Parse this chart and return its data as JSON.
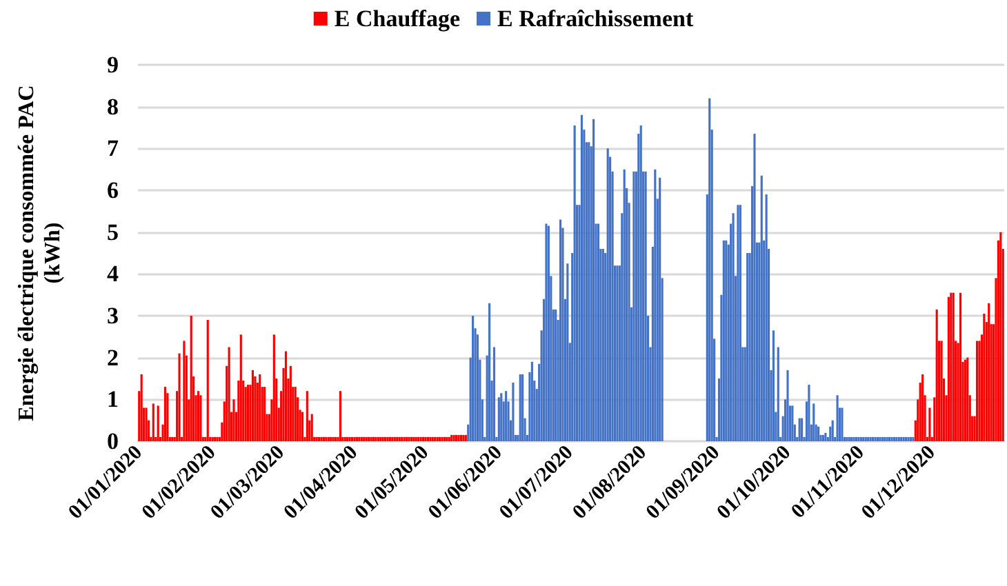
{
  "chart_data": {
    "type": "bar",
    "ylabel": "Energie électrique consommée PAC (kWh)",
    "categories": [
      "01/01/2020",
      null,
      null,
      null,
      null,
      null,
      null,
      null,
      null,
      null,
      null,
      null,
      null,
      null,
      null,
      null,
      null,
      null,
      null,
      null,
      null,
      null,
      null,
      null,
      null,
      null,
      null,
      null,
      null,
      null,
      null,
      "01/02/2020",
      null,
      null,
      null,
      null,
      null,
      null,
      null,
      null,
      null,
      null,
      null,
      null,
      null,
      null,
      null,
      null,
      null,
      null,
      null,
      null,
      null,
      null,
      null,
      null,
      null,
      null,
      null,
      null,
      "01/03/2020",
      null,
      null,
      null,
      null,
      null,
      null,
      null,
      null,
      null,
      null,
      null,
      null,
      null,
      null,
      null,
      null,
      null,
      null,
      null,
      null,
      null,
      null,
      null,
      null,
      null,
      null,
      null,
      null,
      null,
      null,
      "01/04/2020",
      null,
      null,
      null,
      null,
      null,
      null,
      null,
      null,
      null,
      null,
      null,
      null,
      null,
      null,
      null,
      null,
      null,
      null,
      null,
      null,
      null,
      null,
      null,
      null,
      null,
      null,
      null,
      null,
      null,
      "01/05/2020",
      null,
      null,
      null,
      null,
      null,
      null,
      null,
      null,
      null,
      null,
      null,
      null,
      null,
      null,
      null,
      null,
      null,
      null,
      null,
      null,
      null,
      null,
      null,
      null,
      null,
      null,
      null,
      null,
      null,
      null,
      "01/06/2020",
      null,
      null,
      null,
      null,
      null,
      null,
      null,
      null,
      null,
      null,
      null,
      null,
      null,
      null,
      null,
      null,
      null,
      null,
      null,
      null,
      null,
      null,
      null,
      null,
      null,
      null,
      null,
      null,
      null,
      "01/07/2020",
      null,
      null,
      null,
      null,
      null,
      null,
      null,
      null,
      null,
      null,
      null,
      null,
      null,
      null,
      null,
      null,
      null,
      null,
      null,
      null,
      null,
      null,
      null,
      null,
      null,
      null,
      null,
      null,
      null,
      null,
      "01/08/2020",
      null,
      null,
      null,
      null,
      null,
      null,
      null,
      null,
      null,
      null,
      null,
      null,
      null,
      null,
      null,
      null,
      null,
      null,
      null,
      null,
      null,
      null,
      null,
      null,
      null,
      null,
      null,
      null,
      null,
      null,
      "01/09/2020",
      null,
      null,
      null,
      null,
      null,
      null,
      null,
      null,
      null,
      null,
      null,
      null,
      null,
      null,
      null,
      null,
      null,
      null,
      null,
      null,
      null,
      null,
      null,
      null,
      null,
      null,
      null,
      null,
      null,
      "01/10/2020",
      null,
      null,
      null,
      null,
      null,
      null,
      null,
      null,
      null,
      null,
      null,
      null,
      null,
      null,
      null,
      null,
      null,
      null,
      null,
      null,
      null,
      null,
      null,
      null,
      null,
      null,
      null,
      null,
      null,
      null,
      "01/11/2020",
      null,
      null,
      null,
      null,
      null,
      null,
      null,
      null,
      null,
      null,
      null,
      null,
      null,
      null,
      null,
      null,
      null,
      null,
      null,
      null,
      null,
      null,
      null,
      null,
      null,
      null,
      null,
      null,
      null,
      "01/12/2020",
      null,
      null,
      null,
      null,
      null,
      null,
      null,
      null,
      null,
      null,
      null,
      null,
      null,
      null,
      null,
      null,
      null,
      null,
      null,
      null,
      null,
      null,
      null,
      null,
      null,
      null,
      null,
      null,
      null,
      null
    ],
    "series": [
      {
        "name": "E Chauffage",
        "color": "#ff0000",
        "values": [
          1.2,
          1.6,
          0.8,
          0.8,
          0.5,
          0.1,
          0.9,
          0.1,
          0.85,
          0.1,
          0.4,
          1.3,
          1.15,
          0.1,
          0.1,
          0.1,
          1.2,
          2.1,
          0.1,
          2.4,
          2.05,
          1.0,
          3.0,
          1.55,
          1.1,
          1.2,
          1.1,
          0.1,
          0.1,
          2.9,
          0.1,
          0.1,
          0.1,
          0.1,
          0.1,
          0.45,
          0.95,
          1.8,
          2.25,
          0.7,
          1.0,
          0.7,
          1.45,
          2.55,
          1.45,
          1.3,
          1.35,
          1.35,
          1.7,
          1.55,
          1.4,
          1.6,
          1.3,
          1.3,
          0.65,
          0.65,
          1.0,
          2.55,
          1.5,
          0.8,
          1.2,
          1.75,
          2.15,
          1.5,
          1.8,
          1.3,
          1.3,
          1.05,
          0.75,
          0.7,
          0.1,
          1.2,
          0.5,
          0.65,
          0.1,
          0.1,
          0.1,
          0.1,
          0.1,
          0.1,
          0.1,
          0.1,
          0.1,
          0.1,
          0.1,
          1.2,
          0.1,
          0.1,
          0.1,
          0.1,
          0.1,
          0.1,
          0.1,
          0.1,
          0.1,
          0.1,
          0.1,
          0.1,
          0.1,
          0.1,
          0.1,
          0.1,
          0.1,
          0.1,
          0.1,
          0.1,
          0.1,
          0.1,
          0.1,
          0.1,
          0.1,
          0.1,
          0.1,
          0.1,
          0.1,
          0.1,
          0.1,
          0.1,
          0.1,
          0.1,
          0.1,
          0.1,
          0.1,
          0.1,
          0.1,
          0.1,
          0.1,
          0.1,
          0.1,
          0.1,
          0.1,
          0.1,
          0.15,
          0.15,
          0.15,
          0.15,
          0.15,
          0.15,
          0.15,
          null,
          null,
          null,
          null,
          null,
          null,
          null,
          null,
          null,
          null,
          null,
          null,
          null,
          null,
          null,
          null,
          null,
          null,
          null,
          null,
          null,
          null,
          null,
          null,
          null,
          null,
          null,
          null,
          null,
          null,
          null,
          null,
          null,
          null,
          null,
          null,
          null,
          null,
          null,
          null,
          null,
          null,
          null,
          null,
          null,
          null,
          null,
          null,
          null,
          null,
          null,
          null,
          null,
          null,
          null,
          null,
          null,
          null,
          null,
          null,
          null,
          null,
          null,
          null,
          null,
          null,
          null,
          null,
          null,
          null,
          null,
          null,
          null,
          null,
          null,
          null,
          null,
          null,
          null,
          null,
          null,
          null,
          null,
          null,
          null,
          null,
          null,
          null,
          null,
          null,
          null,
          null,
          null,
          null,
          null,
          null,
          null,
          null,
          null,
          null,
          null,
          null,
          null,
          null,
          null,
          null,
          null,
          null,
          null,
          null,
          null,
          null,
          null,
          null,
          null,
          null,
          null,
          null,
          null,
          null,
          null,
          null,
          null,
          null,
          null,
          null,
          null,
          null,
          null,
          null,
          null,
          null,
          null,
          null,
          null,
          null,
          null,
          null,
          null,
          null,
          null,
          null,
          null,
          null,
          null,
          null,
          null,
          null,
          null,
          null,
          null,
          null,
          null,
          null,
          null,
          null,
          null,
          null,
          null,
          null,
          null,
          null,
          null,
          null,
          null,
          null,
          null,
          null,
          null,
          null,
          null,
          null,
          null,
          null,
          null,
          null,
          null,
          null,
          null,
          null,
          null,
          null,
          null,
          null,
          null,
          null,
          null,
          null,
          null,
          0.5,
          1.0,
          1.4,
          1.6,
          1.1,
          0.1,
          0.8,
          0.1,
          1.05,
          3.15,
          2.4,
          2.4,
          1.5,
          1.1,
          3.45,
          3.55,
          3.55,
          2.4,
          2.35,
          3.55,
          1.9,
          1.95,
          2.0,
          1.1,
          0.6,
          0.6,
          2.4,
          2.4,
          2.55,
          3.05,
          2.85,
          3.3,
          2.8,
          2.8,
          3.9,
          4.8,
          5.0,
          4.6
        ]
      },
      {
        "name": "E Rafraîchissement",
        "color": "#4472c4",
        "values": [
          null,
          null,
          null,
          null,
          null,
          null,
          null,
          null,
          null,
          null,
          null,
          null,
          null,
          null,
          null,
          null,
          null,
          null,
          null,
          null,
          null,
          null,
          null,
          null,
          null,
          null,
          null,
          null,
          null,
          null,
          null,
          null,
          null,
          null,
          null,
          null,
          null,
          null,
          null,
          null,
          null,
          null,
          null,
          null,
          null,
          null,
          null,
          null,
          null,
          null,
          null,
          null,
          null,
          null,
          null,
          null,
          null,
          null,
          null,
          null,
          null,
          null,
          null,
          null,
          null,
          null,
          null,
          null,
          null,
          null,
          null,
          null,
          null,
          null,
          null,
          null,
          null,
          null,
          null,
          null,
          null,
          null,
          null,
          null,
          null,
          null,
          null,
          null,
          null,
          null,
          null,
          null,
          null,
          null,
          null,
          null,
          null,
          null,
          null,
          null,
          null,
          null,
          null,
          null,
          null,
          null,
          null,
          null,
          null,
          null,
          null,
          null,
          null,
          null,
          null,
          null,
          null,
          null,
          null,
          null,
          null,
          null,
          null,
          null,
          null,
          null,
          null,
          null,
          null,
          null,
          null,
          null,
          null,
          null,
          null,
          null,
          null,
          null,
          null,
          0.4,
          2.0,
          3.0,
          2.7,
          2.55,
          1.95,
          1.0,
          0.1,
          2.05,
          3.3,
          1.45,
          2.25,
          0.1,
          1.05,
          1.15,
          0.95,
          1.2,
          0.95,
          0.5,
          1.4,
          0.15,
          0.15,
          1.6,
          1.6,
          0.55,
          0.15,
          1.65,
          1.9,
          1.45,
          1.25,
          1.85,
          2.65,
          3.4,
          5.2,
          5.15,
          3.95,
          3.15,
          3.15,
          2.9,
          5.3,
          5.1,
          3.4,
          4.25,
          2.35,
          4.5,
          7.55,
          5.65,
          5.65,
          7.8,
          7.45,
          7.15,
          7.15,
          7.05,
          7.7,
          5.2,
          5.2,
          4.6,
          4.6,
          4.5,
          7.0,
          6.8,
          6.45,
          4.2,
          4.2,
          4.2,
          5.45,
          6.5,
          6.05,
          5.7,
          3.2,
          6.45,
          6.45,
          7.35,
          7.55,
          6.45,
          6.45,
          3.0,
          2.25,
          4.65,
          6.5,
          5.8,
          6.3,
          3.9,
          null,
          null,
          null,
          null,
          null,
          null,
          null,
          null,
          null,
          null,
          null,
          null,
          null,
          null,
          null,
          null,
          null,
          null,
          5.9,
          8.2,
          7.45,
          2.45,
          0.1,
          1.5,
          3.5,
          4.8,
          4.8,
          4.7,
          5.2,
          5.45,
          3.95,
          5.65,
          5.65,
          2.25,
          2.25,
          4.5,
          4.5,
          6.1,
          7.35,
          4.75,
          4.75,
          6.35,
          4.8,
          5.9,
          4.6,
          1.7,
          2.65,
          0.7,
          2.25,
          0.1,
          0.6,
          1.0,
          1.7,
          0.85,
          0.85,
          0.4,
          0.1,
          0.55,
          0.55,
          0.1,
          0.95,
          1.35,
          0.4,
          0.9,
          0.4,
          0.35,
          0.15,
          0.15,
          0.2,
          0.1,
          0.35,
          0.5,
          0.1,
          1.1,
          0.8,
          0.8,
          0.1,
          0.1,
          0.1,
          0.1,
          0.1,
          0.1,
          0.1,
          0.1,
          0.1,
          0.1,
          0.1,
          0.1,
          0.1,
          0.1,
          0.1,
          0.1,
          0.1,
          0.1,
          0.1,
          0.1,
          0.1,
          0.1,
          0.1,
          0.1,
          0.1,
          0.1,
          0.1,
          0.1,
          0.1,
          0.1,
          null,
          null,
          null,
          null,
          null,
          null,
          null,
          null,
          null,
          null,
          null,
          null,
          null,
          null,
          null,
          null,
          null,
          null,
          null,
          null,
          null,
          null,
          null,
          null,
          null,
          null,
          null,
          null,
          null,
          null,
          null,
          null,
          null,
          null,
          null,
          null,
          null,
          null
        ]
      }
    ],
    "ylim": [
      0,
      9
    ],
    "yticks": [
      0,
      1,
      2,
      3,
      4,
      5,
      6,
      7,
      8,
      9
    ],
    "grid": "y",
    "legend": "top"
  }
}
